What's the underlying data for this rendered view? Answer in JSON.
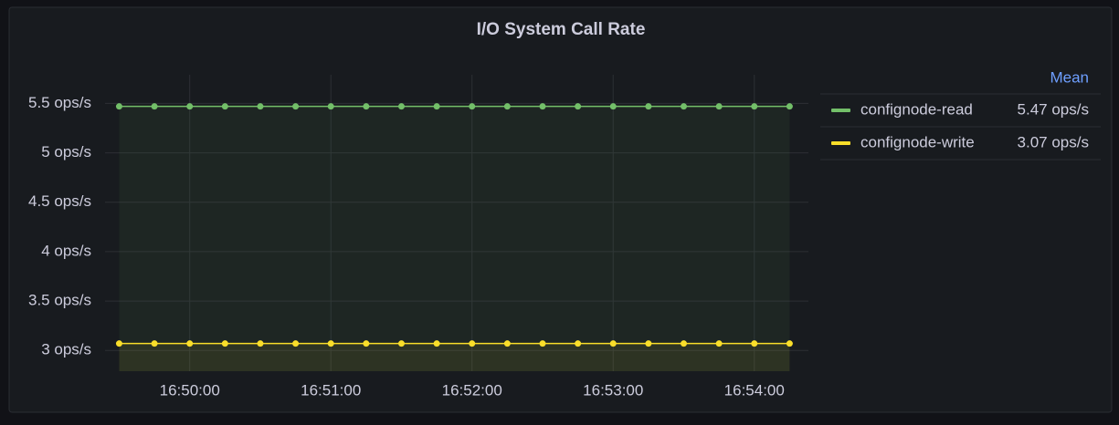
{
  "chart_data": {
    "type": "line",
    "title": "I/O System Call Rate",
    "x": [
      "16:49:30",
      "16:49:45",
      "16:50:00",
      "16:50:15",
      "16:50:30",
      "16:50:45",
      "16:51:00",
      "16:51:15",
      "16:51:30",
      "16:51:45",
      "16:52:00",
      "16:52:15",
      "16:52:30",
      "16:52:45",
      "16:53:00",
      "16:53:15",
      "16:53:30",
      "16:53:45",
      "16:54:00",
      "16:54:15"
    ],
    "xlim": [
      "16:49:24",
      "16:54:23"
    ],
    "xticks": [
      "16:50:00",
      "16:51:00",
      "16:52:00",
      "16:53:00",
      "16:54:00"
    ],
    "ylim": [
      2.79,
      5.79
    ],
    "yticks": [
      {
        "value": 3,
        "label": "3 ops/s"
      },
      {
        "value": 3.5,
        "label": "3.5 ops/s"
      },
      {
        "value": 4,
        "label": "4 ops/s"
      },
      {
        "value": 4.5,
        "label": "4.5 ops/s"
      },
      {
        "value": 5,
        "label": "5 ops/s"
      },
      {
        "value": 5.5,
        "label": "5.5 ops/s"
      }
    ],
    "grid": true,
    "legend_header": "Mean",
    "series": [
      {
        "name": "confignode-read",
        "color": "#73bf69",
        "mean": "5.47 ops/s",
        "values": [
          5.47,
          5.47,
          5.47,
          5.47,
          5.47,
          5.47,
          5.47,
          5.47,
          5.47,
          5.47,
          5.47,
          5.47,
          5.47,
          5.47,
          5.47,
          5.47,
          5.47,
          5.47,
          5.47,
          5.47
        ]
      },
      {
        "name": "confignode-write",
        "color": "#fade2a",
        "mean": "3.07 ops/s",
        "values": [
          3.07,
          3.07,
          3.07,
          3.07,
          3.07,
          3.07,
          3.07,
          3.07,
          3.07,
          3.07,
          3.07,
          3.07,
          3.07,
          3.07,
          3.07,
          3.07,
          3.07,
          3.07,
          3.07,
          3.07
        ]
      }
    ]
  }
}
